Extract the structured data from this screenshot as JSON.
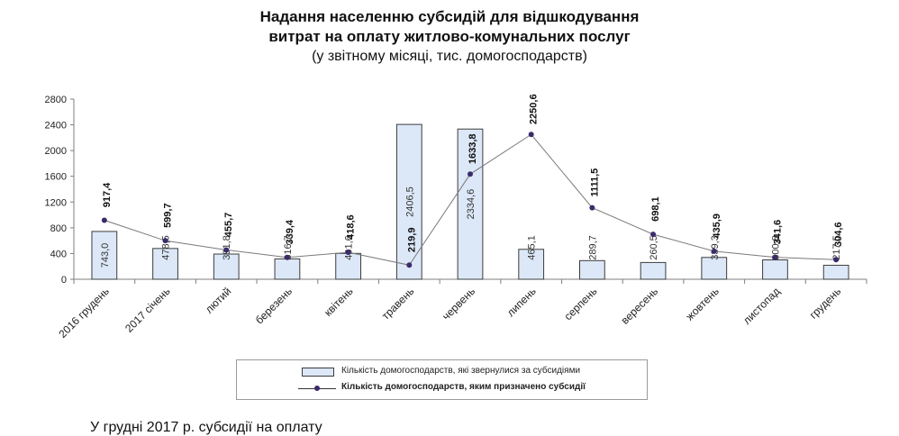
{
  "title": {
    "line1": "Надання населенню субсидій для відшкодування",
    "line2": "витрат на оплату житлово-комунальних послуг",
    "subtitle": "(у звітному місяці, тис. домогосподарств)"
  },
  "chart_data": {
    "type": "bar",
    "categories": [
      "2016 грудень",
      "2017 січень",
      "лютий",
      "березень",
      "квітень",
      "травень",
      "червень",
      "липень",
      "серпень",
      "вересень",
      "жовтень",
      "листопад",
      "грудень"
    ],
    "series": [
      {
        "name": "Кількість домогосподарств, які звернулися за субсидіями",
        "kind": "bar",
        "values": [
          743.0,
          478.5,
          391.8,
          316.7,
          401.6,
          2406.5,
          2334.6,
          465.1,
          289.7,
          260.5,
          339.3,
          300.8,
          217.5
        ],
        "labels": [
          "743,0",
          "478,5",
          "391,8",
          "316,7",
          "401,6",
          "2406,5",
          "2334,6",
          "465,1",
          "289,7",
          "260,5",
          "339,3",
          "300,8",
          "217,5"
        ],
        "color": "#dce8f8"
      },
      {
        "name": "Кількість домогосподарств, яким призначено субсидії",
        "kind": "line",
        "values": [
          917.4,
          599.7,
          455.7,
          339.4,
          418.6,
          219.9,
          1633.8,
          2250.6,
          1111.5,
          698.1,
          435.9,
          341.6,
          304.6
        ],
        "labels": [
          "917,4",
          "599,7",
          "455,7",
          "339,4",
          "418,6",
          "219,9",
          "1633,8",
          "2250,6",
          "1111,5",
          "698,1",
          "435,9",
          "341,6",
          "304,6"
        ],
        "color": "#3b2b6b"
      }
    ],
    "y_ticks": [
      "0",
      "400",
      "800",
      "1200",
      "1600",
      "2000",
      "2400",
      "2800"
    ],
    "ylim": [
      0,
      2800
    ],
    "grid": false,
    "legend_position": "bottom"
  },
  "footer_text": "У грудні 2017 р. субсидії на оплату"
}
